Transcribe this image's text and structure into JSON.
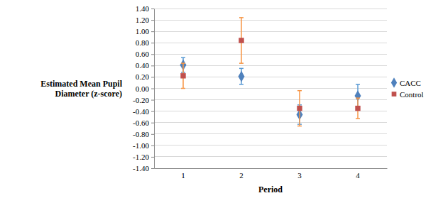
{
  "chart_data": {
    "type": "scatter",
    "x_label": "Period",
    "y_label": "Estimated Mean Pupil Diameter (z-score)",
    "categories": [
      "1",
      "2",
      "3",
      "4"
    ],
    "series": [
      {
        "name": "CACC",
        "color": "#4f81bd",
        "marker": "diamond",
        "values": [
          0.41,
          0.21,
          -0.46,
          -0.13
        ],
        "errors": [
          0.13,
          0.14,
          0.17,
          0.2
        ]
      },
      {
        "name": "Control",
        "color": "#c0504d",
        "marker": "square",
        "values": [
          0.22,
          0.84,
          -0.35,
          -0.35
        ],
        "errors": [
          0.22,
          0.4,
          0.31,
          0.18
        ]
      }
    ],
    "ylim": [
      -1.4,
      1.4
    ],
    "yticks": [
      {
        "value": -1.4,
        "label": "-1.40"
      },
      {
        "value": -1.2,
        "label": "-1.20"
      },
      {
        "value": -1.0,
        "label": "-1.00"
      },
      {
        "value": -0.8,
        "label": "-0.80"
      },
      {
        "value": -0.6,
        "label": "-0.60"
      },
      {
        "value": -0.4,
        "label": "-0.40"
      },
      {
        "value": -0.2,
        "label": "-0.20"
      },
      {
        "value": 0,
        "label": "0.00"
      },
      {
        "value": 0.2,
        "label": "0.20"
      },
      {
        "value": 0.4,
        "label": "0.40"
      },
      {
        "value": 0.6,
        "label": "0.60"
      },
      {
        "value": 0.8,
        "label": "0.80"
      },
      {
        "value": 1.0,
        "label": "1.00"
      },
      {
        "value": 1.2,
        "label": "1.20"
      },
      {
        "value": 1.4,
        "label": "1.40"
      }
    ],
    "grid": true,
    "legend": "right"
  }
}
